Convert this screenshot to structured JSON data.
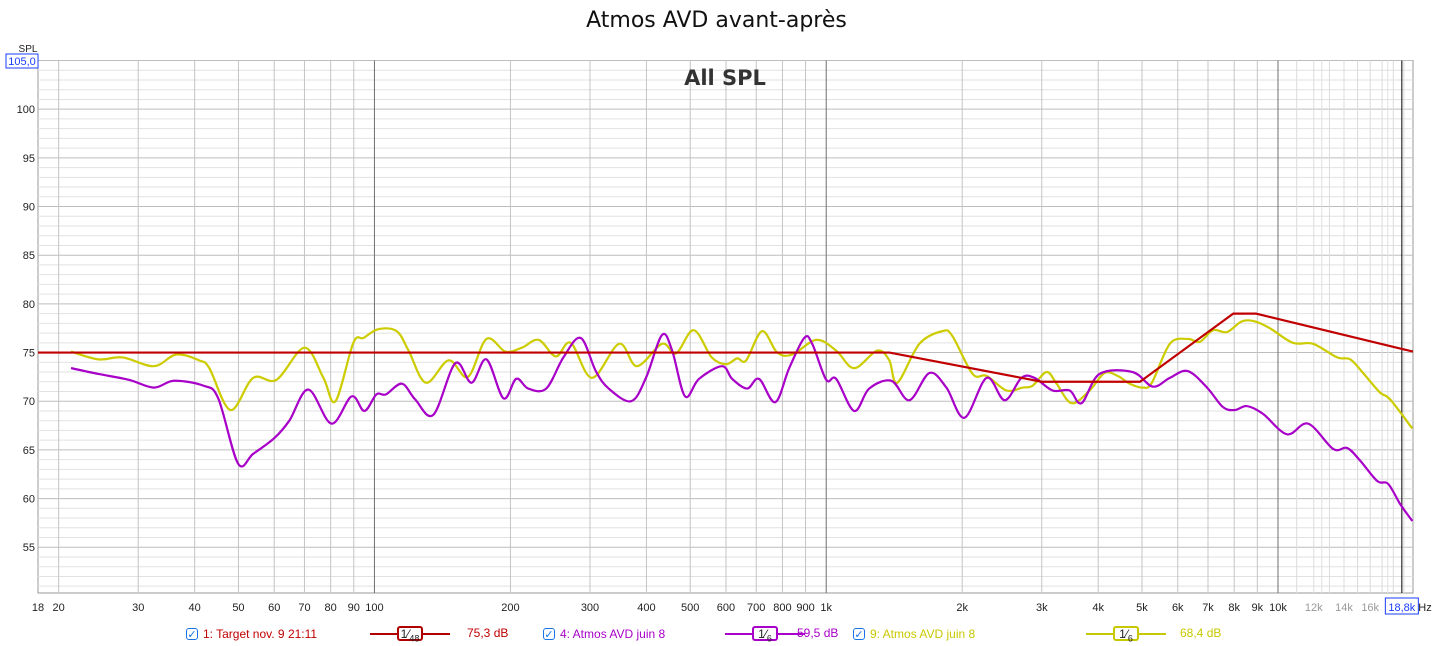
{
  "chart_data": {
    "type": "line",
    "title": "Atmos AVD avant-après",
    "subtitle": "All SPL",
    "ylabel": "SPL",
    "xlabel": "Hz",
    "xscale": "log",
    "xlim": [
      18,
      19900
    ],
    "ylim": [
      50.3,
      105
    ],
    "grid": true,
    "y_top_readout": "105,0",
    "x_cursor_readout": "18,8k",
    "x_cursor_value": 18800,
    "y_ticks": [
      {
        "value": 55,
        "label": "55"
      },
      {
        "value": 60,
        "label": "60"
      },
      {
        "value": 65,
        "label": "65"
      },
      {
        "value": 70,
        "label": "70"
      },
      {
        "value": 75,
        "label": "75"
      },
      {
        "value": 80,
        "label": "80"
      },
      {
        "value": 85,
        "label": "85"
      },
      {
        "value": 90,
        "label": "90"
      },
      {
        "value": 95,
        "label": "95"
      },
      {
        "value": 100,
        "label": "100"
      }
    ],
    "x_ticks": [
      {
        "value": 18,
        "label": "18"
      },
      {
        "value": 20,
        "label": "20"
      },
      {
        "value": 30,
        "label": "30"
      },
      {
        "value": 40,
        "label": "40"
      },
      {
        "value": 50,
        "label": "50"
      },
      {
        "value": 60,
        "label": "60"
      },
      {
        "value": 70,
        "label": "70"
      },
      {
        "value": 80,
        "label": "80"
      },
      {
        "value": 90,
        "label": "90"
      },
      {
        "value": 100,
        "label": "100"
      },
      {
        "value": 200,
        "label": "200"
      },
      {
        "value": 300,
        "label": "300"
      },
      {
        "value": 400,
        "label": "400"
      },
      {
        "value": 500,
        "label": "500"
      },
      {
        "value": 600,
        "label": "600"
      },
      {
        "value": 700,
        "label": "700"
      },
      {
        "value": 800,
        "label": "800"
      },
      {
        "value": 900,
        "label": "900"
      },
      {
        "value": 1000,
        "label": "1k"
      },
      {
        "value": 2000,
        "label": "2k"
      },
      {
        "value": 3000,
        "label": "3k"
      },
      {
        "value": 4000,
        "label": "4k"
      },
      {
        "value": 5000,
        "label": "5k"
      },
      {
        "value": 6000,
        "label": "6k"
      },
      {
        "value": 7000,
        "label": "7k"
      },
      {
        "value": 8000,
        "label": "8k"
      },
      {
        "value": 9000,
        "label": "9k"
      },
      {
        "value": 10000,
        "label": "10k"
      },
      {
        "value": 12000,
        "label": "12k",
        "faded": true
      },
      {
        "value": 14000,
        "label": "14k",
        "faded": true
      },
      {
        "value": 16000,
        "label": "16k",
        "faded": true
      }
    ],
    "series": [
      {
        "name": "1: Target nov. 9 21:11",
        "color": "#c00000",
        "smoothing": {
          "num": "1",
          "den": "48"
        },
        "value": "75,3 dB",
        "points": [
          [
            18,
            75
          ],
          [
            1380,
            75
          ],
          [
            3000,
            72
          ],
          [
            4950,
            72
          ],
          [
            7960,
            79
          ],
          [
            8930,
            79
          ],
          [
            19900,
            75.1
          ]
        ]
      },
      {
        "name": "4: Atmos AVD juin 8",
        "color": "#a800c8",
        "smoothing": {
          "num": "1",
          "den": "6"
        },
        "value": "59,5 dB",
        "points": [
          [
            21.3,
            73.4
          ],
          [
            24.5,
            72.8
          ],
          [
            28.6,
            72.2
          ],
          [
            32.5,
            71.4
          ],
          [
            36,
            72.1
          ],
          [
            41.8,
            71.6
          ],
          [
            45.1,
            70.3
          ],
          [
            49.9,
            63.6
          ],
          [
            53.9,
            64.6
          ],
          [
            60,
            66.2
          ],
          [
            64.8,
            68
          ],
          [
            71.4,
            71.2
          ],
          [
            80.3,
            67.7
          ],
          [
            89,
            70.5
          ],
          [
            95,
            69
          ],
          [
            101,
            70.7
          ],
          [
            106,
            70.7
          ],
          [
            115,
            71.8
          ],
          [
            123,
            70.2
          ],
          [
            135,
            68.6
          ],
          [
            151,
            73.9
          ],
          [
            164,
            71.9
          ],
          [
            177,
            74.3
          ],
          [
            193,
            70.3
          ],
          [
            206,
            72.3
          ],
          [
            219,
            71.3
          ],
          [
            240,
            71.3
          ],
          [
            262,
            74.5
          ],
          [
            286,
            76.5
          ],
          [
            309,
            73.1
          ],
          [
            330,
            71.3
          ],
          [
            370,
            70
          ],
          [
            399,
            72.4
          ],
          [
            433,
            76.8
          ],
          [
            456,
            75.2
          ],
          [
            487,
            70.5
          ],
          [
            523,
            72.3
          ],
          [
            588,
            73.6
          ],
          [
            619,
            72.3
          ],
          [
            668,
            71.3
          ],
          [
            710,
            72.3
          ],
          [
            771,
            69.9
          ],
          [
            828,
            73.4
          ],
          [
            894,
            76.5
          ],
          [
            931,
            75.9
          ],
          [
            1000,
            72.2
          ],
          [
            1052,
            72.3
          ],
          [
            1153,
            69
          ],
          [
            1245,
            71.3
          ],
          [
            1394,
            72.1
          ],
          [
            1528,
            70.1
          ],
          [
            1692,
            72.9
          ],
          [
            1845,
            71.4
          ],
          [
            2023,
            68.3
          ],
          [
            2265,
            72.4
          ],
          [
            2483,
            70.1
          ],
          [
            2705,
            72.4
          ],
          [
            2891,
            72.4
          ],
          [
            3170,
            71.1
          ],
          [
            3459,
            71.1
          ],
          [
            3675,
            69.8
          ],
          [
            4027,
            72.8
          ],
          [
            4767,
            73
          ],
          [
            5281,
            71.5
          ],
          [
            5763,
            72.4
          ],
          [
            6310,
            73.1
          ],
          [
            6966,
            71.4
          ],
          [
            7553,
            69.4
          ],
          [
            8035,
            69.1
          ],
          [
            8531,
            69.5
          ],
          [
            9266,
            68.7
          ],
          [
            10470,
            66.6
          ],
          [
            11660,
            67.7
          ],
          [
            13250,
            65.1
          ],
          [
            14230,
            65.2
          ],
          [
            15200,
            63.9
          ],
          [
            16590,
            61.8
          ],
          [
            17540,
            61.5
          ],
          [
            18660,
            59.4
          ],
          [
            19830,
            57.7
          ]
        ]
      },
      {
        "name": "9: Atmos AVD juin 8",
        "color": "#cccc00",
        "smoothing": {
          "num": "1",
          "den": "6"
        },
        "value": "68,4 dB",
        "points": [
          [
            21.3,
            75.1
          ],
          [
            24.5,
            74.3
          ],
          [
            27.7,
            74.5
          ],
          [
            32.5,
            73.6
          ],
          [
            36.4,
            74.8
          ],
          [
            40.9,
            74.2
          ],
          [
            43.1,
            73.4
          ],
          [
            48,
            69.1
          ],
          [
            53.9,
            72.4
          ],
          [
            60.7,
            72.2
          ],
          [
            70,
            75.5
          ],
          [
            77.1,
            72.4
          ],
          [
            82,
            70
          ],
          [
            89.8,
            76
          ],
          [
            94.6,
            76.5
          ],
          [
            102,
            77.4
          ],
          [
            112,
            77.2
          ],
          [
            119,
            75.2
          ],
          [
            130,
            71.9
          ],
          [
            146,
            74.2
          ],
          [
            161,
            72.5
          ],
          [
            177,
            76.4
          ],
          [
            195,
            75.1
          ],
          [
            212,
            75.5
          ],
          [
            231,
            76.3
          ],
          [
            252,
            74.6
          ],
          [
            272,
            76
          ],
          [
            303,
            72.4
          ],
          [
            348,
            75.9
          ],
          [
            381,
            73.6
          ],
          [
            433,
            75.9
          ],
          [
            465,
            74.9
          ],
          [
            509,
            77.3
          ],
          [
            558,
            74.5
          ],
          [
            600,
            73.8
          ],
          [
            635,
            74.4
          ],
          [
            665,
            74.2
          ],
          [
            721,
            77.2
          ],
          [
            779,
            75
          ],
          [
            841,
            74.8
          ],
          [
            951,
            76.3
          ],
          [
            1052,
            75.2
          ],
          [
            1153,
            73.4
          ],
          [
            1297,
            75.2
          ],
          [
            1379,
            74.2
          ],
          [
            1437,
            71.9
          ],
          [
            1608,
            75.9
          ],
          [
            1808,
            77.2
          ],
          [
            1902,
            76.7
          ],
          [
            2109,
            72.8
          ],
          [
            2265,
            72.6
          ],
          [
            2506,
            71.1
          ],
          [
            2721,
            71.4
          ],
          [
            2864,
            71.6
          ],
          [
            3076,
            73
          ],
          [
            3236,
            71.8
          ],
          [
            3492,
            69.8
          ],
          [
            3828,
            71.1
          ],
          [
            4130,
            72.9
          ],
          [
            4416,
            72.6
          ],
          [
            4698,
            71.8
          ],
          [
            5023,
            71.4
          ],
          [
            5259,
            71.9
          ],
          [
            5763,
            75.9
          ],
          [
            6310,
            76.4
          ],
          [
            6714,
            76.1
          ],
          [
            7178,
            77.3
          ],
          [
            7709,
            77.1
          ],
          [
            8318,
            78.2
          ],
          [
            8892,
            78.2
          ],
          [
            9594,
            77.5
          ],
          [
            10790,
            76
          ],
          [
            11960,
            75.9
          ],
          [
            13520,
            74.5
          ],
          [
            14450,
            74.3
          ],
          [
            15430,
            72.9
          ],
          [
            16810,
            70.9
          ],
          [
            17700,
            70.2
          ],
          [
            19830,
            67.2
          ]
        ]
      }
    ]
  },
  "legend": {
    "check_mark": "✓"
  }
}
